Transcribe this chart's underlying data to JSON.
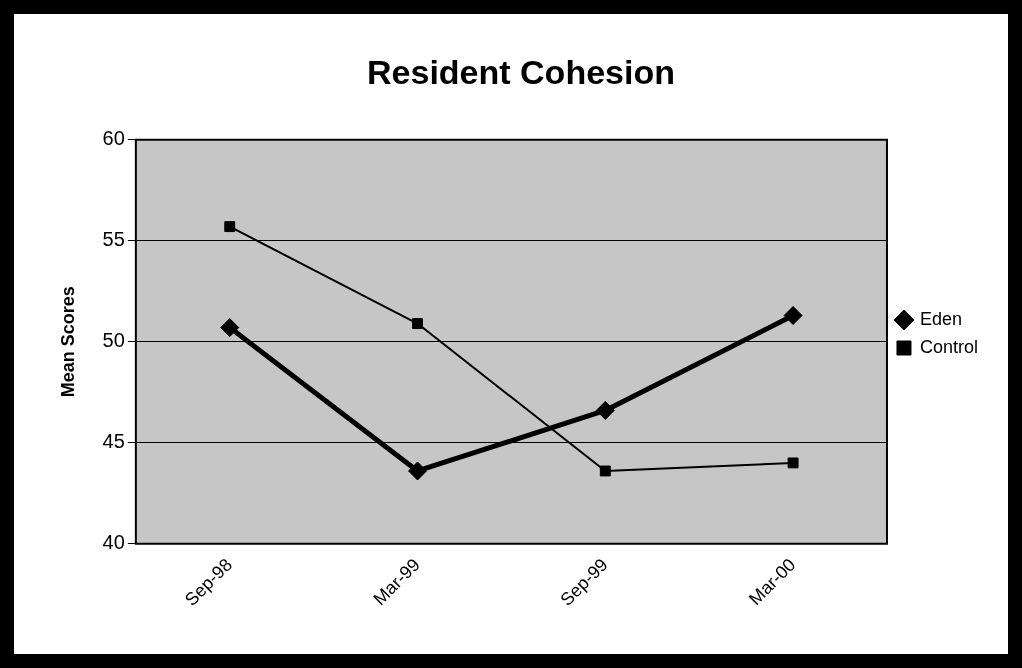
{
  "chart_data": {
    "type": "line",
    "title": "Resident Cohesion",
    "ylabel": "Mean Scores",
    "categories": [
      "Sep-98",
      "Mar-99",
      "Sep-99",
      "Mar-00"
    ],
    "series": [
      {
        "name": "Eden",
        "color": "#000000",
        "marker": "diamond",
        "values": [
          50.7,
          43.6,
          46.6,
          51.3
        ]
      },
      {
        "name": "Control",
        "color": "#000000",
        "marker": "square",
        "values": [
          55.7,
          50.9,
          43.6,
          44.0
        ]
      }
    ],
    "ylim": [
      40,
      60
    ],
    "yticks": [
      40,
      45,
      50,
      55,
      60
    ],
    "grid": "y",
    "legend": "right",
    "line_style": "solid"
  }
}
